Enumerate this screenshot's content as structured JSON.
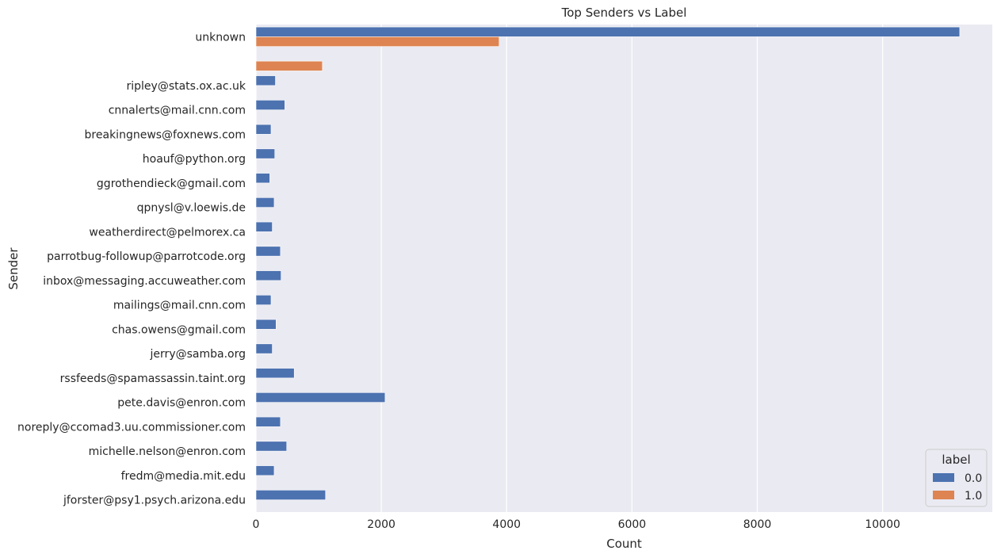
{
  "chart_data": {
    "type": "bar",
    "orientation": "horizontal",
    "title": "Top Senders vs Label",
    "xlabel": "Count",
    "ylabel": "Sender",
    "xlim": [
      0,
      11750
    ],
    "xticks": [
      0,
      2000,
      4000,
      6000,
      8000,
      10000
    ],
    "grid": true,
    "legend": {
      "title": "label",
      "position": "bottom-right"
    },
    "categories": [
      "unknown",
      "",
      "ripley@stats.ox.ac.uk",
      "cnnalerts@mail.cnn.com",
      "breakingnews@foxnews.com",
      "hoauf@python.org",
      "ggrothendieck@gmail.com",
      "qpnysl@v.loewis.de",
      "weatherdirect@pelmorex.ca",
      "parrotbug-followup@parrotcode.org",
      "inbox@messaging.accuweather.com",
      "mailings@mail.cnn.com",
      "chas.owens@gmail.com",
      "jerry@samba.org",
      "rssfeeds@spamassassin.taint.org",
      "pete.davis@enron.com",
      "noreply@ccomad3.uu.commissioner.com",
      "michelle.nelson@enron.com",
      "fredm@media.mit.edu",
      "jforster@psy1.psych.arizona.edu"
    ],
    "series": [
      {
        "name": "0.0",
        "color": "#4c72b0",
        "values": [
          11230,
          null,
          310,
          460,
          240,
          300,
          220,
          290,
          260,
          390,
          400,
          240,
          320,
          260,
          610,
          2060,
          390,
          490,
          290,
          1110
        ]
      },
      {
        "name": "1.0",
        "color": "#dd8452",
        "values": [
          3880,
          1060,
          null,
          null,
          null,
          null,
          null,
          null,
          null,
          null,
          null,
          null,
          null,
          null,
          null,
          null,
          null,
          null,
          null,
          null
        ]
      }
    ]
  },
  "colors": {
    "plot_background": "#eaeaf2",
    "grid": "#ffffff",
    "text": "#262626"
  }
}
